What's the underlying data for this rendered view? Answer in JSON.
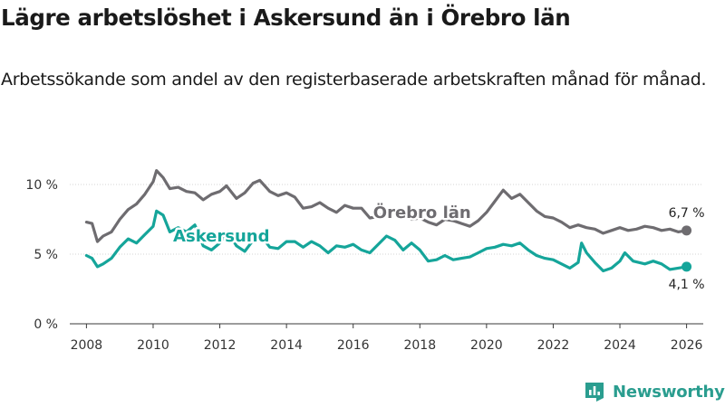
{
  "header": {
    "title": "Lägre arbetslöshet i Askersund än i Örebro län",
    "subtitle": "Arbetssökande som andel av den registerbaserade arbetskraften månad för månad."
  },
  "brand": {
    "name": "Newsworthy",
    "logo_icon": "newsworthy-logo-icon",
    "color": "#2a9d8f"
  },
  "chart_data": {
    "type": "line",
    "title": "Lägre arbetslöshet i Askersund än i Örebro län",
    "xlabel": "",
    "ylabel": "",
    "xlim": [
      2007.5,
      2026.5
    ],
    "ylim": [
      0,
      10
    ],
    "x_ticks": [
      2008,
      2010,
      2012,
      2014,
      2016,
      2018,
      2020,
      2022,
      2024,
      2026
    ],
    "y_ticks": [
      {
        "value": 0,
        "label": "0 %"
      },
      {
        "value": 5,
        "label": "5 %"
      },
      {
        "value": 10,
        "label": "10 %"
      }
    ],
    "grid": "horizontal",
    "series": [
      {
        "name": "Örebro län",
        "color": "#6e6c70",
        "end_label": "6,7 %",
        "points": [
          [
            2008.0,
            7.3
          ],
          [
            2008.17,
            7.2
          ],
          [
            2008.33,
            5.9
          ],
          [
            2008.5,
            6.3
          ],
          [
            2008.75,
            6.6
          ],
          [
            2009.0,
            7.5
          ],
          [
            2009.25,
            8.2
          ],
          [
            2009.5,
            8.6
          ],
          [
            2009.75,
            9.3
          ],
          [
            2010.0,
            10.2
          ],
          [
            2010.1,
            11.0
          ],
          [
            2010.3,
            10.5
          ],
          [
            2010.5,
            9.7
          ],
          [
            2010.75,
            9.8
          ],
          [
            2011.0,
            9.5
          ],
          [
            2011.25,
            9.4
          ],
          [
            2011.5,
            8.9
          ],
          [
            2011.75,
            9.3
          ],
          [
            2012.0,
            9.5
          ],
          [
            2012.2,
            9.9
          ],
          [
            2012.5,
            9.0
          ],
          [
            2012.75,
            9.4
          ],
          [
            2013.0,
            10.1
          ],
          [
            2013.2,
            10.3
          ],
          [
            2013.5,
            9.5
          ],
          [
            2013.75,
            9.2
          ],
          [
            2014.0,
            9.4
          ],
          [
            2014.25,
            9.1
          ],
          [
            2014.5,
            8.3
          ],
          [
            2014.75,
            8.4
          ],
          [
            2015.0,
            8.7
          ],
          [
            2015.25,
            8.3
          ],
          [
            2015.5,
            8.0
          ],
          [
            2015.75,
            8.5
          ],
          [
            2016.0,
            8.3
          ],
          [
            2016.25,
            8.3
          ],
          [
            2016.5,
            7.6
          ],
          [
            2016.75,
            7.7
          ],
          [
            2017.0,
            8.1
          ],
          [
            2017.25,
            8.2
          ],
          [
            2017.5,
            7.8
          ],
          [
            2017.75,
            7.5
          ],
          [
            2018.0,
            7.6
          ],
          [
            2018.25,
            7.3
          ],
          [
            2018.5,
            7.1
          ],
          [
            2018.75,
            7.5
          ],
          [
            2019.0,
            7.4
          ],
          [
            2019.25,
            7.2
          ],
          [
            2019.5,
            7.0
          ],
          [
            2019.75,
            7.4
          ],
          [
            2020.0,
            8.0
          ],
          [
            2020.25,
            8.8
          ],
          [
            2020.5,
            9.6
          ],
          [
            2020.75,
            9.0
          ],
          [
            2021.0,
            9.3
          ],
          [
            2021.25,
            8.7
          ],
          [
            2021.5,
            8.1
          ],
          [
            2021.75,
            7.7
          ],
          [
            2022.0,
            7.6
          ],
          [
            2022.25,
            7.3
          ],
          [
            2022.5,
            6.9
          ],
          [
            2022.75,
            7.1
          ],
          [
            2023.0,
            6.9
          ],
          [
            2023.25,
            6.8
          ],
          [
            2023.5,
            6.5
          ],
          [
            2023.75,
            6.7
          ],
          [
            2024.0,
            6.9
          ],
          [
            2024.25,
            6.7
          ],
          [
            2024.5,
            6.8
          ],
          [
            2024.75,
            7.0
          ],
          [
            2025.0,
            6.9
          ],
          [
            2025.25,
            6.7
          ],
          [
            2025.5,
            6.8
          ],
          [
            2025.75,
            6.6
          ],
          [
            2026.0,
            6.7
          ]
        ]
      },
      {
        "name": "Askersund",
        "color": "#15a59a",
        "end_label": "4,1 %",
        "points": [
          [
            2008.0,
            4.9
          ],
          [
            2008.17,
            4.7
          ],
          [
            2008.33,
            4.1
          ],
          [
            2008.5,
            4.3
          ],
          [
            2008.75,
            4.7
          ],
          [
            2009.0,
            5.5
          ],
          [
            2009.25,
            6.1
          ],
          [
            2009.5,
            5.8
          ],
          [
            2009.75,
            6.4
          ],
          [
            2010.0,
            7.0
          ],
          [
            2010.1,
            8.1
          ],
          [
            2010.3,
            7.8
          ],
          [
            2010.5,
            6.6
          ],
          [
            2010.75,
            6.9
          ],
          [
            2011.0,
            6.6
          ],
          [
            2011.25,
            7.1
          ],
          [
            2011.5,
            5.6
          ],
          [
            2011.75,
            5.3
          ],
          [
            2012.0,
            5.8
          ],
          [
            2012.25,
            6.6
          ],
          [
            2012.5,
            5.6
          ],
          [
            2012.75,
            5.2
          ],
          [
            2013.0,
            6.0
          ],
          [
            2013.25,
            6.3
          ],
          [
            2013.5,
            5.5
          ],
          [
            2013.75,
            5.4
          ],
          [
            2014.0,
            5.9
          ],
          [
            2014.25,
            5.9
          ],
          [
            2014.5,
            5.5
          ],
          [
            2014.75,
            5.9
          ],
          [
            2015.0,
            5.6
          ],
          [
            2015.25,
            5.1
          ],
          [
            2015.5,
            5.6
          ],
          [
            2015.75,
            5.5
          ],
          [
            2016.0,
            5.7
          ],
          [
            2016.25,
            5.3
          ],
          [
            2016.5,
            5.1
          ],
          [
            2016.75,
            5.7
          ],
          [
            2017.0,
            6.3
          ],
          [
            2017.25,
            6.0
          ],
          [
            2017.5,
            5.3
          ],
          [
            2017.75,
            5.8
          ],
          [
            2018.0,
            5.3
          ],
          [
            2018.25,
            4.5
          ],
          [
            2018.5,
            4.6
          ],
          [
            2018.75,
            4.9
          ],
          [
            2019.0,
            4.6
          ],
          [
            2019.25,
            4.7
          ],
          [
            2019.5,
            4.8
          ],
          [
            2019.75,
            5.1
          ],
          [
            2020.0,
            5.4
          ],
          [
            2020.25,
            5.5
          ],
          [
            2020.5,
            5.7
          ],
          [
            2020.75,
            5.6
          ],
          [
            2021.0,
            5.8
          ],
          [
            2021.25,
            5.3
          ],
          [
            2021.5,
            4.9
          ],
          [
            2021.75,
            4.7
          ],
          [
            2022.0,
            4.6
          ],
          [
            2022.25,
            4.3
          ],
          [
            2022.5,
            4.0
          ],
          [
            2022.75,
            4.4
          ],
          [
            2022.85,
            5.8
          ],
          [
            2023.0,
            5.1
          ],
          [
            2023.25,
            4.4
          ],
          [
            2023.5,
            3.8
          ],
          [
            2023.75,
            4.0
          ],
          [
            2024.0,
            4.5
          ],
          [
            2024.15,
            5.1
          ],
          [
            2024.4,
            4.5
          ],
          [
            2024.75,
            4.3
          ],
          [
            2025.0,
            4.5
          ],
          [
            2025.25,
            4.3
          ],
          [
            2025.5,
            3.9
          ],
          [
            2025.75,
            4.0
          ],
          [
            2026.0,
            4.1
          ]
        ]
      }
    ]
  }
}
